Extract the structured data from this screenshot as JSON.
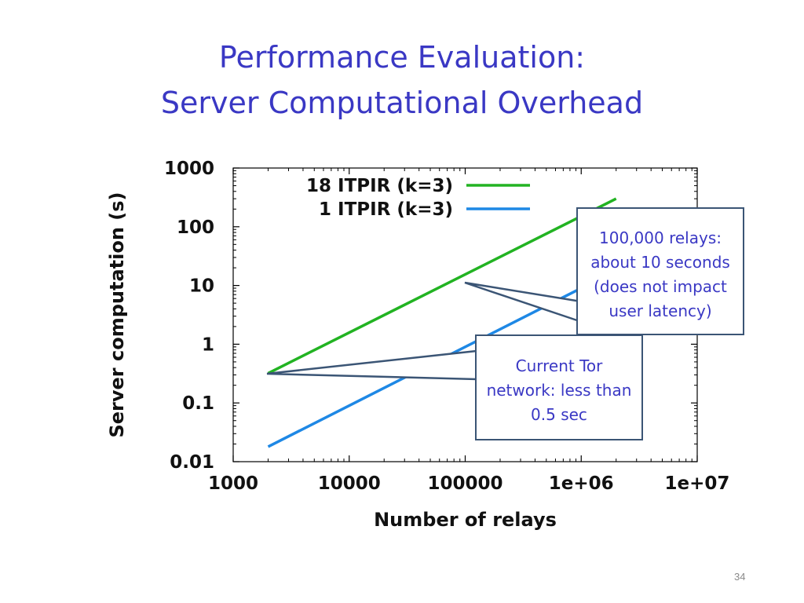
{
  "slide": {
    "title_line1": "Performance Evaluation:",
    "title_line2": "Server Computational Overhead",
    "page_number": "34"
  },
  "callouts": {
    "a": {
      "lines": [
        "100,000 relays:",
        "about 10 seconds",
        "(does not impact",
        "user latency)"
      ]
    },
    "b": {
      "lines": [
        "Current Tor",
        "network: less than",
        "0.5 sec"
      ]
    }
  },
  "colors": {
    "title": "#3a38c4",
    "series_18": "#22b322",
    "series_1": "#1e88e5",
    "callout_border": "#3b5575",
    "callout_text": "#3a38c4"
  },
  "chart_data": {
    "type": "line",
    "xlabel": "Number of relays",
    "ylabel": "Server computation (s)",
    "xscale": "log",
    "yscale": "log",
    "xlim": [
      1000,
      10000000
    ],
    "ylim": [
      0.01,
      1000
    ],
    "x_ticks": [
      "1000",
      "10000",
      "100000",
      "1e+06",
      "1e+07"
    ],
    "y_ticks": [
      "0.01",
      "0.1",
      "1",
      "10",
      "100",
      "1000"
    ],
    "legend_placement": "top",
    "series": [
      {
        "name": "18 ITPIR (k=3)",
        "color": "#22b322",
        "x": [
          2000,
          2000000
        ],
        "y": [
          0.32,
          300
        ]
      },
      {
        "name": "1 ITPIR (k=3)",
        "color": "#1e88e5",
        "x": [
          2000,
          2000000
        ],
        "y": [
          0.018,
          18
        ]
      }
    ]
  }
}
